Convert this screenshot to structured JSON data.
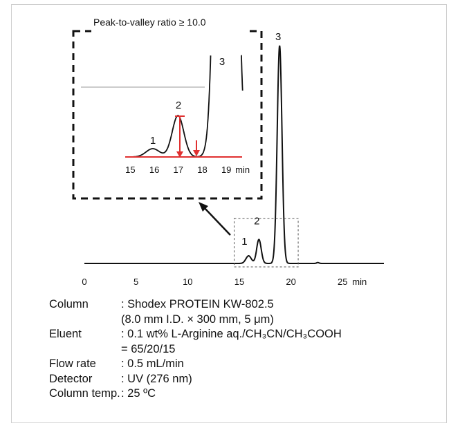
{
  "chart_data": {
    "type": "line",
    "title": "",
    "xlabel": "",
    "ylabel": "",
    "x_unit": "min",
    "xlim": [
      0,
      29
    ],
    "xticks": [
      0,
      5,
      10,
      15,
      20,
      25
    ],
    "grid": false,
    "peaks": [
      {
        "label": "1",
        "rt": 15.9,
        "relative_height": 0.035
      },
      {
        "label": "2",
        "rt": 16.9,
        "relative_height": 0.11
      },
      {
        "label": "3",
        "rt": 18.9,
        "relative_height": 1.0
      }
    ],
    "minor_peaks": [
      {
        "rt": 22.6,
        "relative_height": 0.004
      }
    ],
    "zoom_window_x": [
      14.5,
      20.7
    ],
    "inset": {
      "caption": "Peak-to-valley ratio ≥ 10.0",
      "xlim": [
        14.7,
        19.6
      ],
      "xticks": [
        15,
        16,
        17,
        18,
        19
      ],
      "x_unit": "min",
      "peak_labels": [
        "1",
        "2",
        "3"
      ],
      "marker_color": "#e03030"
    }
  },
  "conditions": {
    "column_label": "Column",
    "column_value": ": Shodex PROTEIN KW-802.5",
    "column_value2": "(8.0 mm I.D. × 300 mm, 5 μm)",
    "eluent_label": "Eluent",
    "eluent_value": ": 0.1 wt% L-Arginine aq./CH₃CN/CH₃COOH",
    "eluent_value2": "= 65/20/15",
    "flow_label": "Flow rate",
    "flow_value": ": 0.5 mL/min",
    "detector_label": "Detector",
    "detector_value": ": UV (276 nm)",
    "temp_label": "Column temp.",
    "temp_value": ": 25 ºC"
  }
}
